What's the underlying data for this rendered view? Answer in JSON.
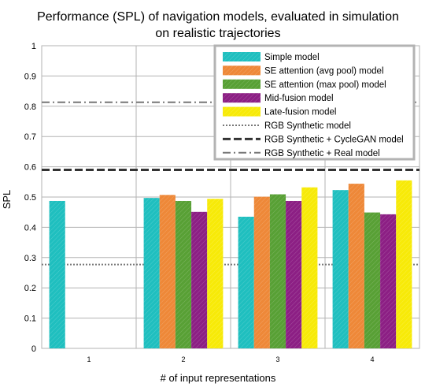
{
  "chart_data": {
    "type": "bar",
    "title_lines": [
      "Performance (SPL) of navigation models, evaluated in simulation",
      "on realistic trajectories"
    ],
    "xlabel": "# of input representations",
    "ylabel": "SPL",
    "ylim": [
      0,
      1
    ],
    "yticks": [
      0,
      0.1,
      0.2,
      0.3,
      0.4,
      0.5,
      0.6,
      0.7,
      0.8,
      0.9,
      1
    ],
    "ytick_labels": [
      "0",
      "0.1",
      "0.2",
      "0.3",
      "0.4",
      "0.5",
      "0.6",
      "0.7",
      "0.8",
      "0.9",
      "1"
    ],
    "categories": [
      "1",
      "2",
      "3",
      "4"
    ],
    "grid": true,
    "legend_position": "top-right",
    "series": [
      {
        "name": "Simple model",
        "color": "#1fbfbf",
        "values": [
          0.487,
          0.497,
          0.435,
          0.523
        ]
      },
      {
        "name": "SE attention (avg pool) model",
        "color": "#ee8838",
        "values": [
          null,
          0.507,
          0.501,
          0.544
        ]
      },
      {
        "name": "SE attention (max pool) model",
        "color": "#58a035",
        "values": [
          null,
          0.487,
          0.509,
          0.449
        ]
      },
      {
        "name": "Mid-fusion model",
        "color": "#8c1f84",
        "values": [
          null,
          0.451,
          0.487,
          0.443
        ]
      },
      {
        "name": "Late-fusion model",
        "color": "#f7ea08",
        "values": [
          null,
          0.494,
          0.532,
          0.555
        ]
      }
    ],
    "reference_lines": [
      {
        "name": "RGB Synthetic model",
        "value": 0.277,
        "style": "dotted",
        "color": "#777777"
      },
      {
        "name": "RGB Synthetic + CycleGAN model",
        "value": 0.59,
        "style": "dashed",
        "color": "#333333"
      },
      {
        "name": "RGB Synthetic + Real model",
        "value": 0.813,
        "style": "dashdot",
        "color": "#777777"
      }
    ]
  }
}
